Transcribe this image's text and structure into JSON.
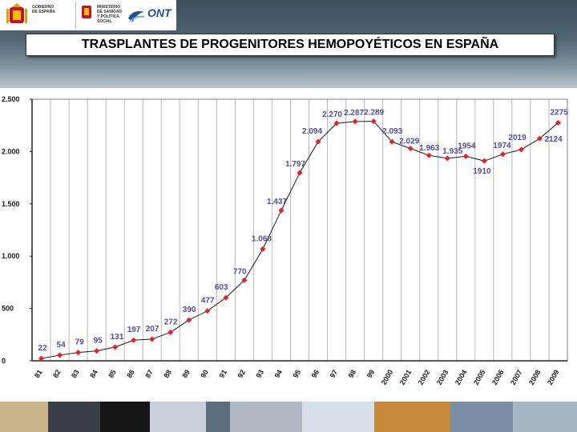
{
  "header": {
    "gov_logo_text": [
      "GOBIERNO",
      "DE ESPAÑA"
    ],
    "ministry_text": [
      "MINISTERIO",
      "DE SANIDAD",
      "Y POLÍTICA SOCIAL"
    ],
    "ont_logo_text": "ONT",
    "title": "TRASPLANTES DE PROGENITORES HEMOPOYÉTICOS EN ESPAÑA"
  },
  "colors": {
    "line": "#1a1a1a",
    "marker": "#e8202a",
    "labels": "#4f4fa0",
    "plot_bg": "#ffffff",
    "header_dark": "#3b4f5c"
  },
  "chart_data": {
    "type": "line",
    "categories": [
      "81",
      "82",
      "83",
      "84",
      "85",
      "86",
      "87",
      "88",
      "89",
      "90",
      "91",
      "92",
      "93",
      "94",
      "95",
      "96",
      "97",
      "98",
      "99",
      "2000",
      "2001",
      "2002",
      "2003",
      "2004",
      "2005",
      "2006",
      "2007",
      "2008",
      "2009"
    ],
    "values": [
      22,
      54,
      79,
      95,
      131,
      197,
      207,
      272,
      390,
      477,
      603,
      770,
      1068,
      1437,
      1797,
      2094,
      2270,
      2287,
      2289,
      2093,
      2029,
      1963,
      1935,
      1954,
      1910,
      1974,
      2019,
      2124,
      2275
    ],
    "data_labels": [
      "22",
      "54",
      "79",
      "95",
      "131",
      "197",
      "207",
      "272",
      "390",
      "477",
      "603",
      "770",
      "1.068",
      "1.437",
      "1.797",
      "2.094",
      "2.270",
      "2.287",
      "2.289",
      "2.093",
      "2.029",
      "1.963",
      "1.935",
      "1954",
      "1910",
      "1974",
      "2019",
      "2124",
      "2275"
    ],
    "y_ticks": [
      0,
      500,
      1000,
      1500,
      2000,
      2500
    ],
    "y_tick_labels": [
      "0",
      "500",
      "1.000",
      "1.500",
      "2.000",
      "2.500"
    ],
    "ylim": [
      0,
      2500
    ],
    "grid": "vertical",
    "legend": "none"
  }
}
